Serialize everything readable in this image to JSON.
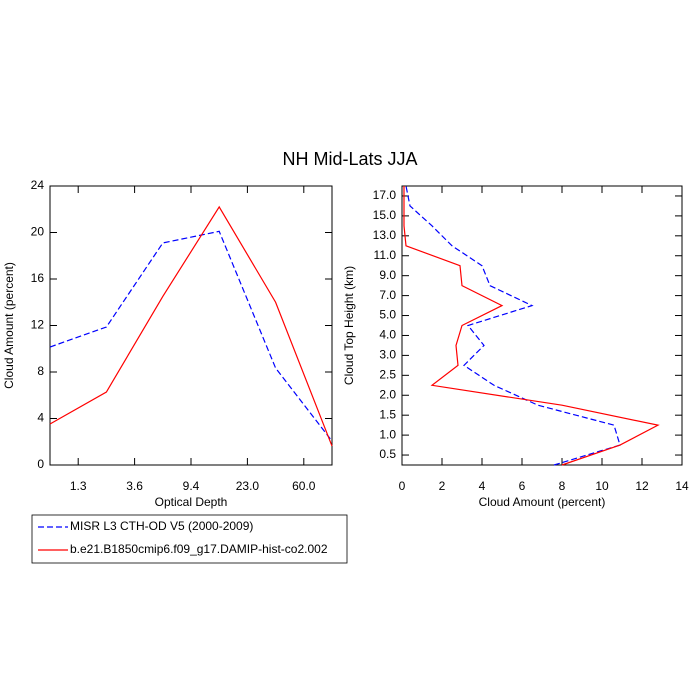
{
  "title": "NH Mid-Lats JJA",
  "chart_data": [
    {
      "type": "line",
      "xlabel": "Optical Depth",
      "ylabel": "Cloud Amount (percent)",
      "x": [
        0,
        1,
        2,
        3,
        4,
        5
      ],
      "xlim": [
        0,
        5
      ],
      "xticks": [
        {
          "value": 0.5,
          "label": "1.3"
        },
        {
          "value": 1.5,
          "label": "3.6"
        },
        {
          "value": 2.5,
          "label": "9.4"
        },
        {
          "value": 3.5,
          "label": "23.0"
        },
        {
          "value": 4.5,
          "label": "60.0"
        }
      ],
      "ylim": [
        0,
        24
      ],
      "yticks": [
        0,
        4,
        8,
        12,
        16,
        20,
        24
      ],
      "series": [
        {
          "name": "MISR L3 CTH-OD V5 (2000-2009)",
          "color": "#0000ff",
          "dashed": true,
          "values": [
            10.15,
            11.87,
            19.1,
            20.1,
            8.34,
            2.06
          ]
        },
        {
          "name": "b.e21.B1850cmip6.f09_g17.DAMIP-hist-co2.002",
          "color": "#ff0000",
          "dashed": false,
          "values": [
            3.53,
            6.28,
            14.5,
            22.2,
            14.0,
            1.63
          ]
        }
      ]
    },
    {
      "type": "hline",
      "xlabel": "Cloud Amount (percent)",
      "ylabel": "Cloud Top Height (km)",
      "y": [
        0,
        1,
        2,
        3,
        4,
        5,
        6,
        7,
        8,
        9,
        10,
        11,
        12,
        13,
        14
      ],
      "ylim": [
        0,
        14
      ],
      "yticks": [
        {
          "value": 0.5,
          "label": "0.5"
        },
        {
          "value": 1.5,
          "label": "1.0"
        },
        {
          "value": 2.5,
          "label": "1.5"
        },
        {
          "value": 3.5,
          "label": "2.0"
        },
        {
          "value": 4.5,
          "label": "2.5"
        },
        {
          "value": 5.5,
          "label": "3.0"
        },
        {
          "value": 6.5,
          "label": "4.0"
        },
        {
          "value": 7.5,
          "label": "5.0"
        },
        {
          "value": 8.5,
          "label": "7.0"
        },
        {
          "value": 9.5,
          "label": "9.0"
        },
        {
          "value": 10.5,
          "label": "11.0"
        },
        {
          "value": 11.5,
          "label": "13.0"
        },
        {
          "value": 12.5,
          "label": "15.0"
        },
        {
          "value": 13.5,
          "label": "17.0"
        }
      ],
      "xlim": [
        0,
        14
      ],
      "xticks": [
        0,
        2,
        4,
        6,
        8,
        10,
        12,
        14
      ],
      "series": [
        {
          "color": "#0000ff",
          "dashed": true,
          "values": [
            7.6,
            10.9,
            10.6,
            6.8,
            4.6,
            3.1,
            4.1,
            3.3,
            6.5,
            4.4,
            4.0,
            2.5,
            1.5,
            0.4,
            0.2
          ]
        },
        {
          "color": "#ff0000",
          "dashed": false,
          "values": [
            8.0,
            10.9,
            12.8,
            8.0,
            1.5,
            2.8,
            2.7,
            3.0,
            5.0,
            3.0,
            2.9,
            0.2,
            0.1,
            0.1,
            0.1
          ]
        }
      ]
    }
  ]
}
